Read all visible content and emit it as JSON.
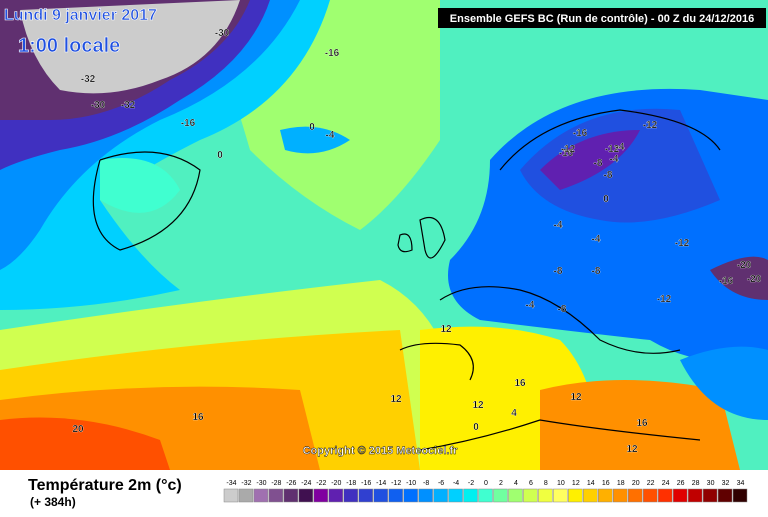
{
  "header": {
    "title": "Lundi 9 janvier 2017",
    "time": "1:00 locale",
    "run": "Ensemble GEFS BC (Run de contrôle)  -  00 Z du 24/12/2016",
    "copyright": "Copyright © 2015 Meteociel.fr"
  },
  "footer": {
    "variable": "Température 2m (°c)",
    "lead": "(+ 384h)"
  },
  "map": {
    "contour_labels": [
      -30,
      -16,
      -32,
      -30,
      -32,
      -16,
      0,
      -4,
      0,
      -16,
      -12,
      -16,
      -12,
      -8,
      -4,
      -12,
      -20,
      -16,
      -20,
      -8,
      -8,
      -4,
      -12,
      -4,
      0,
      12,
      16,
      12,
      4,
      20,
      16,
      12,
      0,
      -4,
      12,
      16,
      12,
      -12,
      -4,
      -8,
      -8
    ]
  },
  "scale": {
    "values": [
      -34,
      -32,
      -30,
      -28,
      -26,
      -24,
      -22,
      -20,
      -18,
      -16,
      -14,
      -12,
      -10,
      -8,
      -6,
      -4,
      -2,
      0,
      2,
      4,
      6,
      8,
      10,
      12,
      14,
      16,
      18,
      20,
      22,
      24,
      26,
      28,
      30,
      32,
      34
    ],
    "colors": [
      "#cccccc",
      "#aaaaaa",
      "#a070b0",
      "#805090",
      "#603070",
      "#401050",
      "#8000a0",
      "#6020b0",
      "#4030c0",
      "#3040d0",
      "#2050e0",
      "#1060f0",
      "#0070ff",
      "#0090ff",
      "#00b0ff",
      "#00d0ff",
      "#00f0f0",
      "#40ffd0",
      "#70ffa0",
      "#a0ff70",
      "#d0ff50",
      "#f0ff40",
      "#ffff60",
      "#fff000",
      "#ffd000",
      "#ffb000",
      "#ff9000",
      "#ff7000",
      "#ff5000",
      "#ff3000",
      "#e00000",
      "#c00000",
      "#900000",
      "#600000",
      "#300000"
    ]
  }
}
